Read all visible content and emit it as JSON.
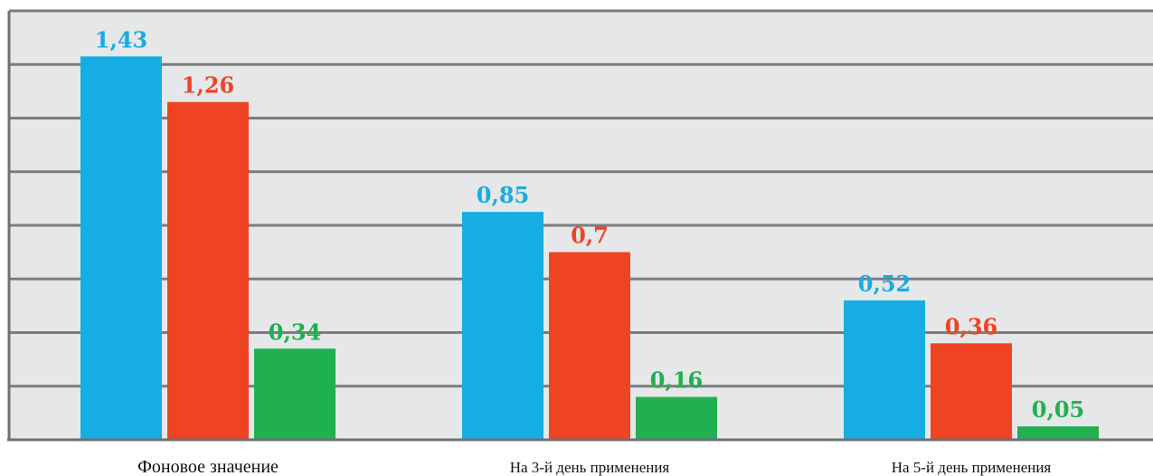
{
  "chart_data": {
    "type": "bar",
    "title": "",
    "xlabel": "",
    "ylabel": "",
    "categories": [
      "Фоновое значение",
      "На 3-й день применения",
      "На 5-й день применения"
    ],
    "series": [
      {
        "color": "#15ade3",
        "values": [
          1.43,
          0.85,
          0.52
        ],
        "labels": [
          "1,43",
          "0,85",
          "0,52"
        ]
      },
      {
        "color": "#ef4423",
        "values": [
          1.26,
          0.7,
          0.36
        ],
        "labels": [
          "1,26",
          "0,7",
          "0,36"
        ]
      },
      {
        "color": "#20b04f",
        "values": [
          0.34,
          0.16,
          0.05
        ],
        "labels": [
          "0,34",
          "0,16",
          "0,05"
        ]
      }
    ],
    "ylim": [
      0,
      1.6
    ],
    "grid": true,
    "legend": "none",
    "background_color": "#e6e7e9",
    "grid_color": "#7c7c7e"
  }
}
